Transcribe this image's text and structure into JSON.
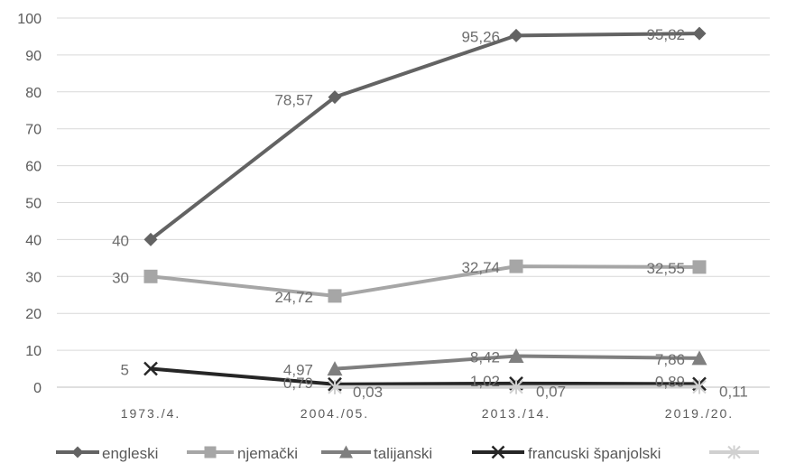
{
  "chart_data": {
    "type": "line",
    "categories": [
      "1973./4.",
      "2004./05.",
      "2013./14.",
      "2019./20."
    ],
    "ylim": [
      0,
      100
    ],
    "yticks": [
      0,
      10,
      20,
      30,
      40,
      50,
      60,
      70,
      80,
      90,
      100
    ],
    "grid": true,
    "legend_position": "bottom",
    "series": [
      {
        "name": "engleski",
        "values": [
          40,
          78.57,
          95.26,
          95.82
        ],
        "labels": [
          "40",
          "78,57",
          "95,26",
          "95,82"
        ],
        "color": "#636363",
        "marker": "diamond"
      },
      {
        "name": "njemački",
        "values": [
          30,
          24.72,
          32.74,
          32.55
        ],
        "labels": [
          "30",
          "24,72",
          "32,74",
          "32,55"
        ],
        "color": "#a6a6a6",
        "marker": "square"
      },
      {
        "name": "talijanski",
        "values": [
          null,
          4.97,
          8.42,
          7.86
        ],
        "labels": [
          "",
          "4,97",
          "8,42",
          "7,86"
        ],
        "color": "#7f7f7f",
        "marker": "triangle"
      },
      {
        "name": "francuski",
        "values": [
          5,
          0.79,
          1.02,
          0.89
        ],
        "labels": [
          "5",
          "0,79",
          "1,02",
          "0,89"
        ],
        "color": "#262626",
        "marker": "x"
      },
      {
        "name": "španjolski",
        "values": [
          null,
          0.03,
          0.07,
          0.11
        ],
        "labels": [
          "",
          "0,03",
          "0,07",
          "0,11"
        ],
        "color": "#d0d0d0",
        "marker": "star"
      }
    ]
  }
}
